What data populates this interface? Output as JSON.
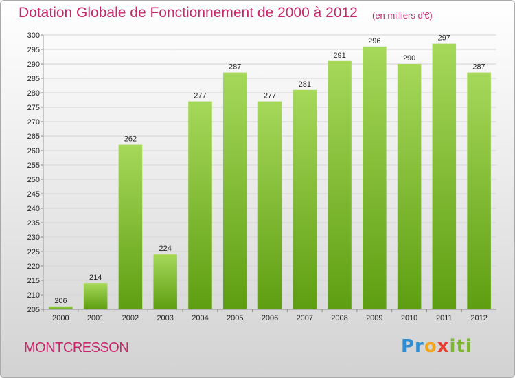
{
  "title": "Dotation Globale de Fonctionnement de 2000 à 2012",
  "unit": "(en milliers d'€)",
  "place": "MONTCRESSON",
  "logo": [
    "Pr",
    "o",
    "x",
    "iti"
  ],
  "colors": {
    "bar_top": "#a6d85a",
    "bar_bottom": "#5e9e12",
    "title": "#c6276a",
    "grid": "#d5d5d5"
  },
  "chart_data": {
    "type": "bar",
    "categories": [
      "2000",
      "2001",
      "2002",
      "2003",
      "2004",
      "2005",
      "2006",
      "2007",
      "2008",
      "2009",
      "2010",
      "2011",
      "2012"
    ],
    "values": [
      206,
      214,
      262,
      224,
      277,
      287,
      277,
      281,
      291,
      296,
      290,
      297,
      287
    ],
    "title": "Dotation Globale de Fonctionnement de 2000 à 2012",
    "ylabel": "",
    "xlabel": "",
    "ylim": [
      205,
      300
    ],
    "ytick_step": 5,
    "grid": true
  }
}
